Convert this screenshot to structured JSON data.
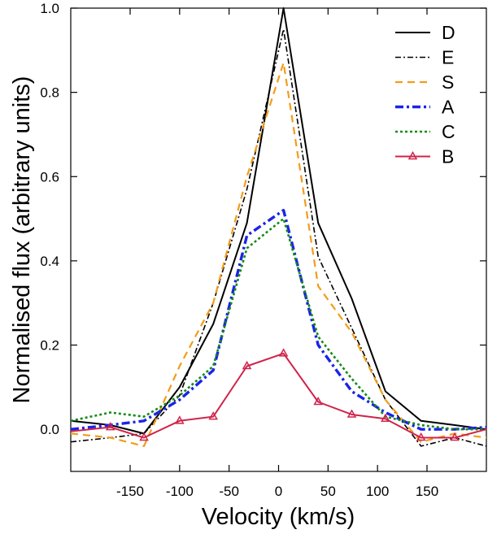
{
  "chart_data": {
    "type": "line",
    "xlabel": "Velocity (km/s)",
    "ylabel": "Normalised flux (arbitrary units)",
    "xlim": [
      -210,
      210
    ],
    "ylim": [
      -0.1,
      1.0
    ],
    "xticks": [
      -150,
      -100,
      -50,
      0,
      50,
      100,
      150
    ],
    "xtick_labels": [
      "-150",
      "-100",
      "-50",
      "0",
      "50",
      "100",
      "150"
    ],
    "yticks": [
      0.0,
      0.2,
      0.4,
      0.6,
      0.8,
      1.0
    ],
    "ytick_labels": [
      "0.0",
      "0.2",
      "0.4",
      "0.6",
      "0.8",
      "1.0"
    ],
    "legend_position": "top-right",
    "series": [
      {
        "name": "D",
        "color": "#000000",
        "dash": "solid",
        "marker": "none",
        "x": [
          -210,
          -170,
          -136,
          -100,
          -66,
          -32,
          5,
          40,
          74,
          108,
          144,
          178,
          210
        ],
        "y": [
          0.02,
          0.01,
          -0.01,
          0.1,
          0.25,
          0.49,
          1.0,
          0.49,
          0.31,
          0.09,
          0.02,
          0.01,
          0.0
        ]
      },
      {
        "name": "E",
        "color": "#000000",
        "dash": "dashdot",
        "marker": "none",
        "x": [
          -210,
          -170,
          -136,
          -100,
          -66,
          -32,
          5,
          40,
          74,
          108,
          144,
          178,
          210
        ],
        "y": [
          -0.03,
          -0.02,
          -0.01,
          0.08,
          0.3,
          0.57,
          0.95,
          0.41,
          0.24,
          0.07,
          -0.04,
          -0.02,
          -0.04
        ]
      },
      {
        "name": "S",
        "color": "#f39c1a",
        "dash": "dashed",
        "marker": "none",
        "x": [
          -210,
          -170,
          -136,
          -100,
          -66,
          -32,
          5,
          40,
          74,
          108,
          144,
          178,
          210
        ],
        "y": [
          -0.01,
          -0.02,
          -0.04,
          0.15,
          0.3,
          0.6,
          0.87,
          0.34,
          0.23,
          0.07,
          -0.03,
          -0.01,
          -0.02
        ]
      },
      {
        "name": "A",
        "color": "#1a24e6",
        "dash": "dashdot-bold",
        "marker": "none",
        "x": [
          -210,
          -170,
          -136,
          -100,
          -66,
          -32,
          5,
          40,
          74,
          108,
          144,
          178,
          210
        ],
        "y": [
          0.0,
          0.01,
          0.02,
          0.07,
          0.14,
          0.46,
          0.52,
          0.2,
          0.09,
          0.04,
          0.0,
          0.0,
          0.005
        ]
      },
      {
        "name": "C",
        "color": "#138b13",
        "dash": "dotted",
        "marker": "none",
        "x": [
          -210,
          -170,
          -136,
          -100,
          -66,
          -32,
          5,
          40,
          74,
          108,
          144,
          178,
          210
        ],
        "y": [
          0.02,
          0.04,
          0.03,
          0.08,
          0.15,
          0.43,
          0.5,
          0.22,
          0.12,
          0.03,
          0.01,
          0.0,
          0.0
        ]
      },
      {
        "name": "B",
        "color": "#d0234a",
        "dash": "solid",
        "marker": "triangle",
        "x": [
          -210,
          -170,
          -136,
          -100,
          -66,
          -32,
          5,
          40,
          74,
          108,
          144,
          178,
          210
        ],
        "y": [
          -0.005,
          0.005,
          -0.02,
          0.02,
          0.03,
          0.15,
          0.18,
          0.065,
          0.035,
          0.025,
          -0.02,
          -0.02,
          0.0
        ]
      }
    ]
  }
}
